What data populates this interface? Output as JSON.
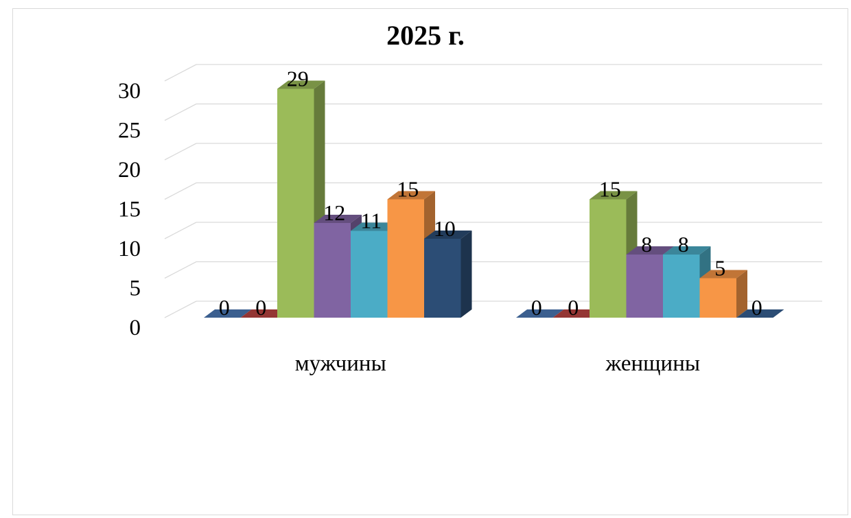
{
  "chart_data": {
    "type": "bar",
    "title": "2025 г.",
    "categories": [
      "мужчины",
      "женщины"
    ],
    "series": [
      {
        "values": [
          0,
          0
        ],
        "color": "#3b5f8f"
      },
      {
        "values": [
          0,
          0
        ],
        "color": "#943634"
      },
      {
        "values": [
          29,
          15
        ],
        "color": "#9bbb59"
      },
      {
        "values": [
          12,
          8
        ],
        "color": "#8064a2"
      },
      {
        "values": [
          11,
          8
        ],
        "color": "#4bacc6"
      },
      {
        "values": [
          15,
          5
        ],
        "color": "#f79646"
      },
      {
        "values": [
          10,
          0
        ],
        "color": "#2c4d75"
      }
    ],
    "yticks": [
      0,
      5,
      10,
      15,
      20,
      25,
      30
    ],
    "ylim": [
      0,
      30
    ],
    "grid": true,
    "legend": "none",
    "style": "3d-clustered-column"
  }
}
